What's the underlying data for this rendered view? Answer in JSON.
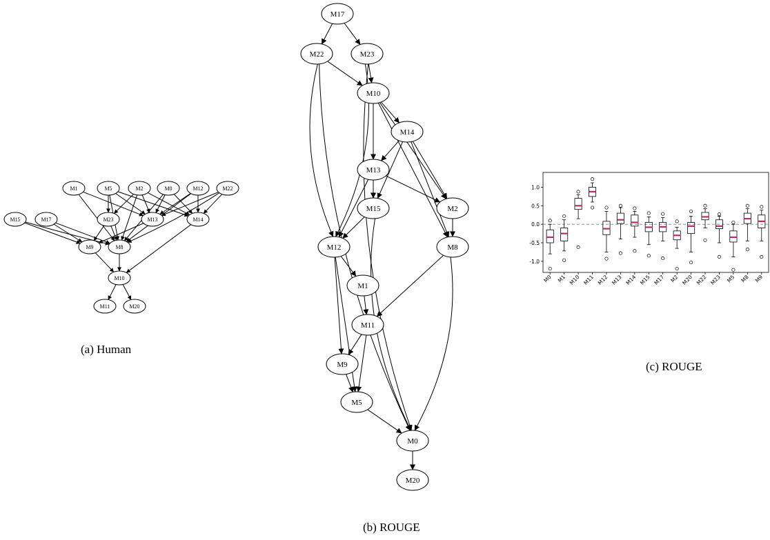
{
  "captions": {
    "a": "(a) Human",
    "b": "(b) ROUGE",
    "c": "(c) ROUGE"
  },
  "graph_a": {
    "nodes": [
      "M1",
      "M5",
      "M2",
      "M0",
      "M12",
      "M22",
      "M15",
      "M17",
      "M23",
      "M13",
      "M14",
      "M9",
      "M8",
      "M10",
      "M11",
      "M20"
    ],
    "edges": [
      [
        "M1",
        "M13"
      ],
      [
        "M1",
        "M8"
      ],
      [
        "M5",
        "M23"
      ],
      [
        "M5",
        "M13"
      ],
      [
        "M5",
        "M14"
      ],
      [
        "M5",
        "M8"
      ],
      [
        "M2",
        "M23"
      ],
      [
        "M2",
        "M13"
      ],
      [
        "M2",
        "M14"
      ],
      [
        "M2",
        "M8"
      ],
      [
        "M0",
        "M13"
      ],
      [
        "M0",
        "M14"
      ],
      [
        "M0",
        "M8"
      ],
      [
        "M12",
        "M13"
      ],
      [
        "M12",
        "M14"
      ],
      [
        "M12",
        "M8"
      ],
      [
        "M22",
        "M13"
      ],
      [
        "M22",
        "M14"
      ],
      [
        "M22",
        "M8"
      ],
      [
        "M15",
        "M9"
      ],
      [
        "M15",
        "M8"
      ],
      [
        "M17",
        "M9"
      ],
      [
        "M17",
        "M8"
      ],
      [
        "M23",
        "M9"
      ],
      [
        "M23",
        "M8"
      ],
      [
        "M13",
        "M9"
      ],
      [
        "M14",
        "M10"
      ],
      [
        "M9",
        "M10"
      ],
      [
        "M8",
        "M10"
      ],
      [
        "M10",
        "M11"
      ],
      [
        "M10",
        "M20"
      ]
    ]
  },
  "graph_b": {
    "nodes": [
      "M17",
      "M22",
      "M23",
      "M10",
      "M14",
      "M13",
      "M15",
      "M2",
      "M12",
      "M8",
      "M1",
      "M11",
      "M9",
      "M5",
      "M0",
      "M20"
    ],
    "edges": [
      [
        "M17",
        "M22"
      ],
      [
        "M17",
        "M23"
      ],
      [
        "M22",
        "M10"
      ],
      [
        "M22",
        "M12"
      ],
      [
        "M22",
        "M0"
      ],
      [
        "M23",
        "M10"
      ],
      [
        "M23",
        "M12"
      ],
      [
        "M23",
        "M0"
      ],
      [
        "M10",
        "M14"
      ],
      [
        "M10",
        "M13"
      ],
      [
        "M10",
        "M15"
      ],
      [
        "M10",
        "M2"
      ],
      [
        "M10",
        "M8"
      ],
      [
        "M14",
        "M13"
      ],
      [
        "M14",
        "M15"
      ],
      [
        "M14",
        "M2"
      ],
      [
        "M14",
        "M8"
      ],
      [
        "M13",
        "M15"
      ],
      [
        "M13",
        "M2"
      ],
      [
        "M13",
        "M12"
      ],
      [
        "M15",
        "M12"
      ],
      [
        "M15",
        "M0"
      ],
      [
        "M2",
        "M8"
      ],
      [
        "M12",
        "M1"
      ],
      [
        "M12",
        "M9"
      ],
      [
        "M12",
        "M5"
      ],
      [
        "M8",
        "M11"
      ],
      [
        "M8",
        "M0"
      ],
      [
        "M1",
        "M11"
      ],
      [
        "M11",
        "M9"
      ],
      [
        "M11",
        "M5"
      ],
      [
        "M9",
        "M5"
      ],
      [
        "M5",
        "M0"
      ],
      [
        "M0",
        "M20"
      ]
    ]
  },
  "chart_data": {
    "type": "box",
    "categories": [
      "M0",
      "M1",
      "M10",
      "M11",
      "M12",
      "M13",
      "M14",
      "M15",
      "M17",
      "M2",
      "M20",
      "M22",
      "M23",
      "M5",
      "M8",
      "M9"
    ],
    "ylim": [
      -1.3,
      1.4
    ],
    "yticks": [
      "1.0",
      "0.5",
      "0.0",
      "-0.5",
      "-1.0"
    ],
    "reference_line": 0.0,
    "boxes": [
      {
        "min": -0.8,
        "q1": -0.5,
        "median": -0.35,
        "q3": -0.15,
        "max": 0.0,
        "outliers": [
          0.1,
          -1.2
        ]
      },
      {
        "min": -0.72,
        "q1": -0.45,
        "median": -0.25,
        "q3": -0.1,
        "max": 0.12,
        "outliers": [
          0.22,
          -0.97
        ]
      },
      {
        "min": 0.15,
        "q1": 0.4,
        "median": 0.5,
        "q3": 0.7,
        "max": 0.8,
        "outliers": [
          0.88,
          -0.62
        ]
      },
      {
        "min": 0.6,
        "q1": 0.75,
        "median": 0.88,
        "q3": 1.0,
        "max": 1.12,
        "outliers": [
          1.22,
          0.45
        ]
      },
      {
        "min": -0.75,
        "q1": -0.28,
        "median": -0.12,
        "q3": 0.08,
        "max": 0.35,
        "outliers": [
          0.45,
          -0.93
        ]
      },
      {
        "min": -0.4,
        "q1": 0.02,
        "median": 0.12,
        "q3": 0.3,
        "max": 0.45,
        "outliers": [
          0.5,
          -0.78
        ]
      },
      {
        "min": -0.35,
        "q1": -0.05,
        "median": 0.05,
        "q3": 0.25,
        "max": 0.35,
        "outliers": [
          0.43,
          -0.72
        ]
      },
      {
        "min": -0.55,
        "q1": -0.2,
        "median": -0.08,
        "q3": 0.05,
        "max": 0.2,
        "outliers": [
          0.3,
          -0.85
        ]
      },
      {
        "min": -0.45,
        "q1": -0.2,
        "median": -0.07,
        "q3": 0.05,
        "max": 0.18,
        "outliers": [
          0.28,
          -0.92
        ]
      },
      {
        "min": -0.65,
        "q1": -0.42,
        "median": -0.3,
        "q3": -0.18,
        "max": -0.08,
        "outliers": [
          0.08,
          -1.2
        ]
      },
      {
        "min": -0.75,
        "q1": -0.25,
        "median": -0.05,
        "q3": 0.05,
        "max": 0.22,
        "outliers": [
          0.35,
          -1.03
        ]
      },
      {
        "min": -0.1,
        "q1": 0.12,
        "median": 0.2,
        "q3": 0.32,
        "max": 0.42,
        "outliers": [
          0.5,
          -0.43
        ]
      },
      {
        "min": -0.5,
        "q1": -0.12,
        "median": -0.05,
        "q3": 0.12,
        "max": 0.22,
        "outliers": [
          0.27,
          -0.88
        ]
      },
      {
        "min": -0.88,
        "q1": -0.48,
        "median": -0.35,
        "q3": -0.18,
        "max": 0.0,
        "outliers": [
          0.05,
          -1.23
        ]
      },
      {
        "min": -0.45,
        "q1": 0.02,
        "median": 0.15,
        "q3": 0.3,
        "max": 0.42,
        "outliers": [
          0.5,
          -0.68
        ]
      },
      {
        "min": -0.45,
        "q1": -0.1,
        "median": 0.08,
        "q3": 0.25,
        "max": 0.38,
        "outliers": [
          0.47,
          -0.88
        ]
      }
    ],
    "colors": {
      "median": "#b0306e",
      "box": "#000000",
      "reference": "#808080"
    }
  }
}
